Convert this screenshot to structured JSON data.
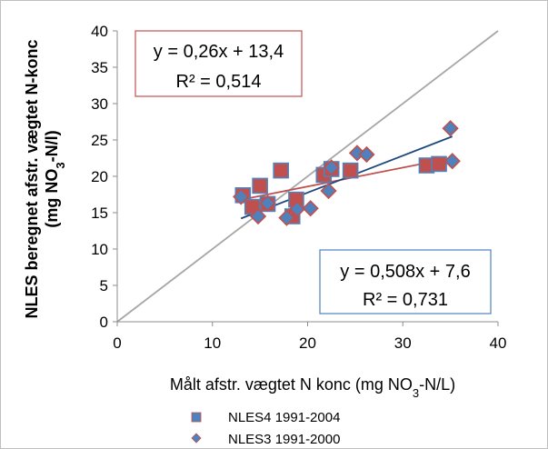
{
  "chart_data": {
    "type": "scatter",
    "xlabel": "Målt afstr. vægtet N konc (mg NO3-N/L)",
    "xlabel_parts": [
      "Målt afstr. vægtet N konc (mg NO",
      "3",
      "-N/L)"
    ],
    "ylabel_line1": "NLES beregnet afstr. vægtet N-konc",
    "ylabel_line2_parts": [
      "(mg NO",
      "3",
      "-N/l)"
    ],
    "xlim": [
      0,
      40
    ],
    "ylim": [
      0,
      40
    ],
    "x_ticks": [
      0,
      10,
      20,
      30,
      40
    ],
    "y_ticks": [
      0,
      5,
      10,
      15,
      20,
      25,
      30,
      35,
      40
    ],
    "x_tick_labels": [
      "0",
      "10",
      "20",
      "30",
      "40"
    ],
    "y_tick_labels": [
      "0",
      "5",
      "10",
      "15",
      "20",
      "25",
      "30",
      "35",
      "40"
    ],
    "grid": false,
    "legend_position": "bottom",
    "series": [
      {
        "name": "NLES4 1991-2004",
        "marker": "square",
        "color": "#c0504d",
        "edge": "#4f81bd",
        "points": [
          [
            13.2,
            17.4
          ],
          [
            14.2,
            15.8
          ],
          [
            15.0,
            18.7
          ],
          [
            15.8,
            16.2
          ],
          [
            17.2,
            20.8
          ],
          [
            18.4,
            14.5
          ],
          [
            18.8,
            16.8
          ],
          [
            21.7,
            20.2
          ],
          [
            22.5,
            21.0
          ],
          [
            24.5,
            20.8
          ],
          [
            32.5,
            21.5
          ],
          [
            33.8,
            21.7
          ]
        ]
      },
      {
        "name": "NLES3 1991-2000",
        "marker": "diamond",
        "color": "#4f81bd",
        "edge": "#c0504d",
        "points": [
          [
            13.0,
            17.2
          ],
          [
            14.8,
            14.5
          ],
          [
            15.8,
            16.3
          ],
          [
            17.8,
            14.3
          ],
          [
            18.9,
            15.5
          ],
          [
            20.3,
            15.6
          ],
          [
            22.2,
            18.0
          ],
          [
            22.5,
            21.2
          ],
          [
            25.2,
            23.2
          ],
          [
            26.2,
            23.0
          ],
          [
            35.0,
            26.6
          ],
          [
            35.2,
            22.1
          ]
        ]
      }
    ],
    "trendlines": [
      {
        "name": "red",
        "color": "#c0504d",
        "slope": 0.26,
        "intercept": 13.4,
        "x_range": [
          13.0,
          35.2
        ]
      },
      {
        "name": "blue",
        "color": "#1f497d",
        "slope": 0.508,
        "intercept": 7.6,
        "x_range": [
          13.0,
          35.2
        ]
      }
    ],
    "reference_line": {
      "color": "#a6a6a6",
      "from": [
        0,
        0
      ],
      "to": [
        40,
        40
      ]
    },
    "annotations": [
      {
        "id": "eq-nles4",
        "line1": "y = 0,26x + 13,4",
        "line2": "R² = 0,514",
        "border": "#c0504d"
      },
      {
        "id": "eq-nles3",
        "line1": "y = 0,508x + 7,6",
        "line2": "R² = 0,731",
        "border": "#4f81bd"
      }
    ]
  }
}
